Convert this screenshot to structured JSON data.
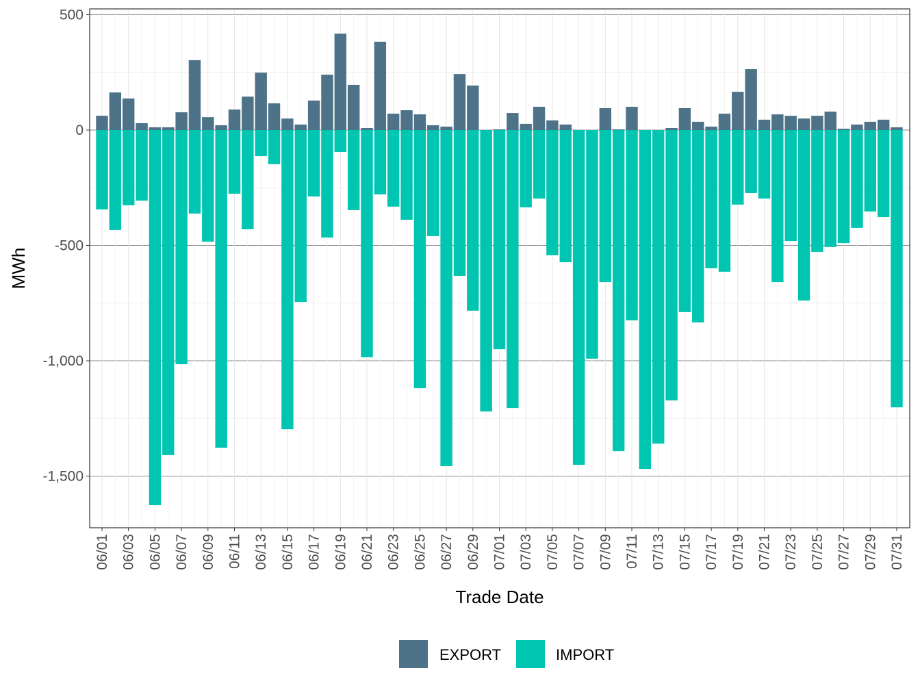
{
  "chart_data": {
    "type": "bar",
    "stacked": true,
    "xlabel": "Trade Date",
    "ylabel": "MWh",
    "ylim": [
      -1730,
      505
    ],
    "yticks": [
      500,
      0,
      -500,
      -1000,
      -1500
    ],
    "ytick_labels": [
      "500",
      "0",
      "-500",
      "-1,000",
      "-1,500"
    ],
    "grid": true,
    "legend": "bottom",
    "categories": [
      "06/01",
      "06/02",
      "06/03",
      "06/04",
      "06/05",
      "06/06",
      "06/07",
      "06/08",
      "06/09",
      "06/10",
      "06/11",
      "06/12",
      "06/13",
      "06/14",
      "06/15",
      "06/16",
      "06/17",
      "06/18",
      "06/19",
      "06/20",
      "06/21",
      "06/22",
      "06/23",
      "06/24",
      "06/25",
      "06/26",
      "06/27",
      "06/28",
      "06/29",
      "06/30",
      "07/01",
      "07/02",
      "07/03",
      "07/04",
      "07/05",
      "07/06",
      "07/07",
      "07/08",
      "07/09",
      "07/10",
      "07/11",
      "07/12",
      "07/13",
      "07/14",
      "07/15",
      "07/16",
      "07/17",
      "07/18",
      "07/19",
      "07/20",
      "07/21",
      "07/22",
      "07/23",
      "07/24",
      "07/25",
      "07/26",
      "07/27",
      "07/28",
      "07/29",
      "07/30",
      "07/31"
    ],
    "series": [
      {
        "name": "EXPORT",
        "color": "#4e7389",
        "values": [
          62,
          163,
          137,
          30,
          12,
          12,
          77,
          303,
          56,
          21,
          89,
          145,
          249,
          116,
          50,
          24,
          128,
          240,
          418,
          196,
          9,
          383,
          71,
          86,
          68,
          21,
          15,
          243,
          193,
          0,
          3,
          74,
          27,
          101,
          42,
          24,
          0,
          0,
          95,
          3,
          101,
          0,
          0,
          9,
          95,
          36,
          15,
          71,
          166,
          264,
          45,
          68,
          62,
          50,
          62,
          80,
          6,
          24,
          36,
          45,
          12
        ]
      },
      {
        "name": "IMPORT",
        "color": "#00c5b0",
        "values": [
          -344,
          -433,
          -326,
          -306,
          -1626,
          -1409,
          -1015,
          -362,
          -484,
          -1377,
          -276,
          -430,
          -113,
          -148,
          -1297,
          -745,
          -288,
          -466,
          -95,
          -347,
          -985,
          -279,
          -332,
          -389,
          -1119,
          -460,
          -1457,
          -632,
          -783,
          -1220,
          -950,
          -1205,
          -335,
          -297,
          -543,
          -573,
          -1451,
          -991,
          -659,
          -1392,
          -825,
          -1469,
          -1359,
          -1172,
          -789,
          -834,
          -599,
          -614,
          -323,
          -273,
          -297,
          -659,
          -481,
          -739,
          -528,
          -507,
          -490,
          -424,
          -353,
          -377,
          -1202
        ]
      }
    ]
  }
}
